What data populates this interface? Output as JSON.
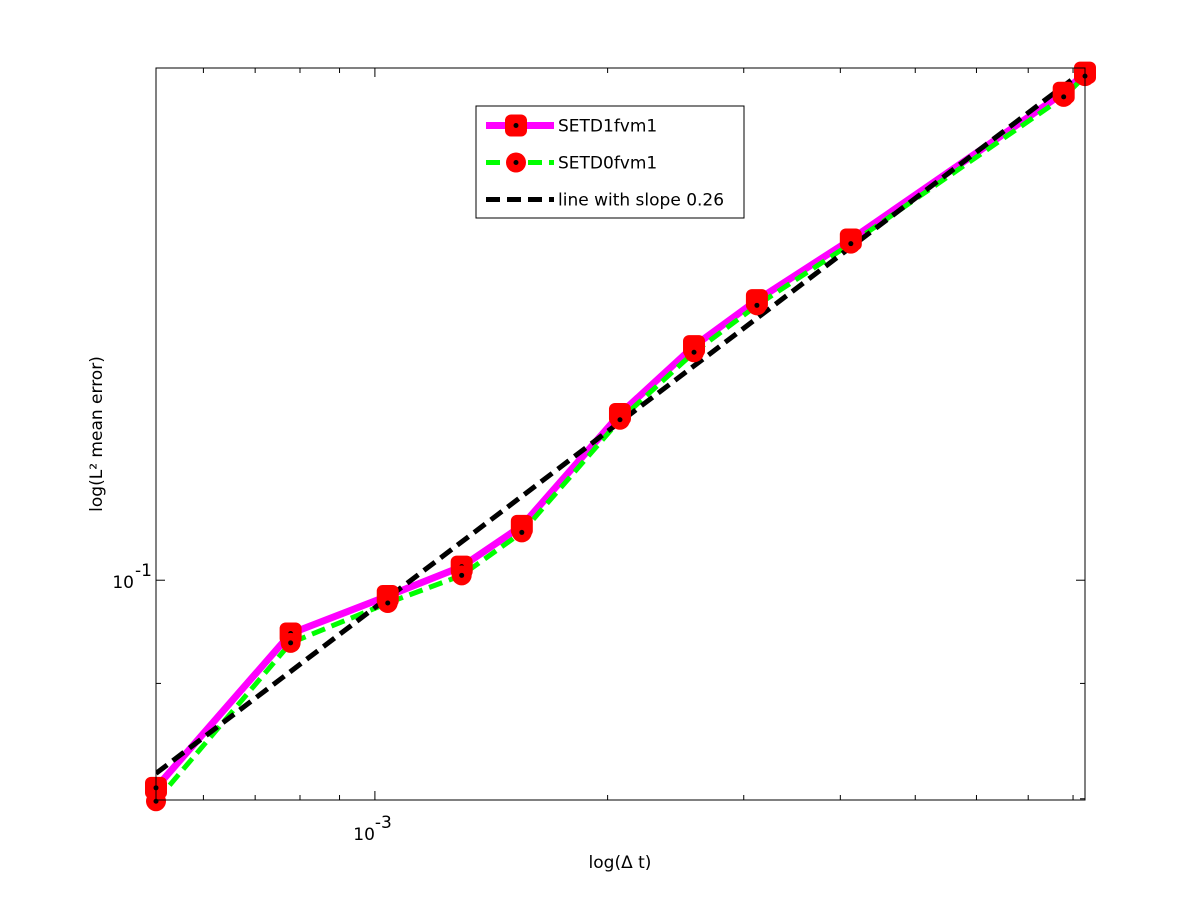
{
  "chart_data": {
    "type": "line",
    "xlabel": "log(Δ t)",
    "ylabel": "log(L² mean error)",
    "xscale": "log",
    "yscale": "log",
    "xlim": [
      0.000521,
      0.00829
    ],
    "ylim": [
      0.0799,
      0.1687
    ],
    "xticks": [
      {
        "value": 0.001,
        "label": "10",
        "exponent": "-3"
      }
    ],
    "xminor": [
      0.0006,
      0.0007,
      0.0008,
      0.0009,
      0.002,
      0.003,
      0.004,
      0.005,
      0.006,
      0.007,
      0.008
    ],
    "yticks": [
      {
        "value": 0.1,
        "label": "10",
        "exponent": "-1"
      }
    ],
    "yminor": [
      0.08,
      0.09
    ],
    "x": [
      0.000521,
      0.000778,
      0.001039,
      0.001295,
      0.001549,
      0.002075,
      0.002587,
      0.00312,
      0.004127,
      0.00778,
      0.00829
    ],
    "legend": "top-center",
    "series": [
      {
        "name": "SETD1fvm1",
        "color": "#ff00ff",
        "dash": "solid",
        "width": 7,
        "marker": "square",
        "marker_color": "#ff0000",
        "values": [
          0.0809,
          0.0947,
          0.0984,
          0.1014,
          0.1057,
          0.1185,
          0.127,
          0.1331,
          0.1416,
          0.1645,
          0.1679
        ]
      },
      {
        "name": "SETD0fvm1",
        "color": "#00ff00",
        "dash": "dashed",
        "width": 5,
        "marker": "circle",
        "marker_color": "#ff0000",
        "values": [
          0.0798,
          0.0938,
          0.0977,
          0.1005,
          0.105,
          0.1178,
          0.1262,
          0.1324,
          0.141,
          0.1638,
          0.1673
        ]
      },
      {
        "name": "line with slope 0.26",
        "color": "#000000",
        "dash": "dashed",
        "width": 5,
        "marker": "none",
        "x": [
          0.000521,
          0.00829
        ],
        "values": [
          0.0821,
          0.1684
        ]
      }
    ]
  }
}
